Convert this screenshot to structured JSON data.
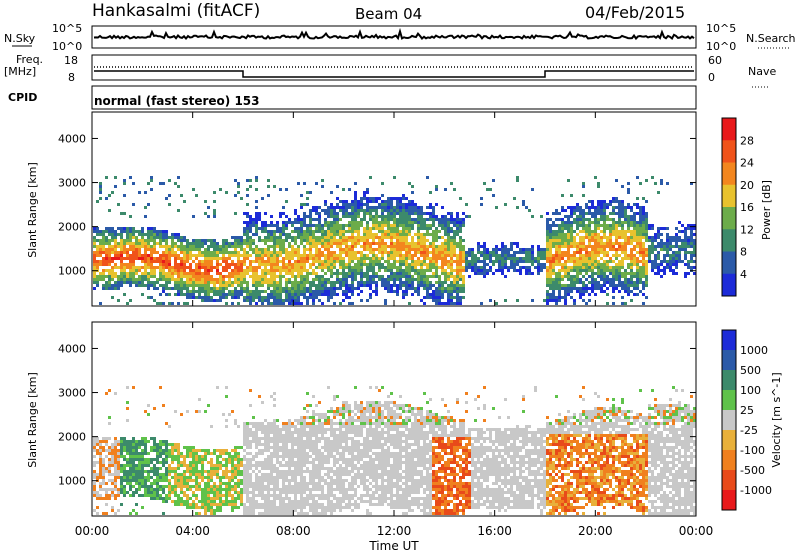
{
  "header": {
    "station": "Hankasalmi (fitACF)",
    "beam": "Beam 04",
    "date": "04/Feb/2015"
  },
  "noise_panel": {
    "left_label": "N.Sky",
    "right_label": "N.Search",
    "left_ticks": [
      "10^5",
      "10^0"
    ],
    "right_ticks": [
      "10^5",
      "10^0"
    ]
  },
  "freq_panel": {
    "left_label_1": "Freq.",
    "left_label_2": "[MHz]",
    "left_ticks": [
      "18",
      "8"
    ],
    "right_label": "Nave",
    "right_ticks": [
      "60",
      "0"
    ]
  },
  "cpid": {
    "label": "CPID",
    "value": "normal (fast stereo) 153"
  },
  "chart_data": [
    {
      "type": "heatmap",
      "title": "",
      "xlabel": "Time UT",
      "ylabel": "Slant Range [km]",
      "xlim": [
        "00:00",
        "24:00"
      ],
      "ylim": [
        200,
        4600
      ],
      "x_ticks": [
        "00:00",
        "04:00",
        "08:00",
        "12:00",
        "16:00",
        "20:00",
        "00:00"
      ],
      "y_ticks": [
        1000,
        2000,
        3000,
        4000
      ],
      "colorbar": {
        "label": "Power [dB]",
        "ticks": [
          "28",
          "24",
          "20",
          "16",
          "12",
          "8",
          "4"
        ],
        "colors": [
          "#e8191b",
          "#f0531a",
          "#f3861e",
          "#e8c22e",
          "#6cac4a",
          "#3c8a6b",
          "#2b5aa8",
          "#1c2bd8"
        ]
      },
      "description_regions": [
        {
          "t_start": 0.0,
          "t_end": 6.0,
          "range_km": [
            800,
            1800
          ],
          "power_db": 28
        },
        {
          "t_start": 6.0,
          "t_end": 14.8,
          "range_km": [
            900,
            2200
          ],
          "power_db": 22
        },
        {
          "t_start": 18.0,
          "t_end": 22.0,
          "range_km": [
            1000,
            2000
          ],
          "power_db": 24
        }
      ]
    },
    {
      "type": "heatmap",
      "title": "",
      "xlabel": "Time UT",
      "ylabel": "Slant Range [km]",
      "xlim": [
        "00:00",
        "24:00"
      ],
      "ylim": [
        200,
        4600
      ],
      "x_ticks": [
        "00:00",
        "04:00",
        "08:00",
        "12:00",
        "16:00",
        "20:00",
        "00:00"
      ],
      "y_ticks": [
        1000,
        2000,
        3000,
        4000
      ],
      "colorbar": {
        "label": "Velocity [m s^-1]",
        "ticks": [
          "1000",
          "500",
          "100",
          "25",
          "-25",
          "-100",
          "-500",
          "-1000"
        ],
        "colors": [
          "#1c2bd8",
          "#2b5aa8",
          "#3c8a6b",
          "#5fc24a",
          "#c8c8c8",
          "#e8b03a",
          "#f0801e",
          "#e84a1a",
          "#e8191b"
        ]
      }
    }
  ],
  "colors": {
    "background": "#ffffff",
    "axis": "#000000",
    "ground_scatter": "#c8c8c8"
  }
}
